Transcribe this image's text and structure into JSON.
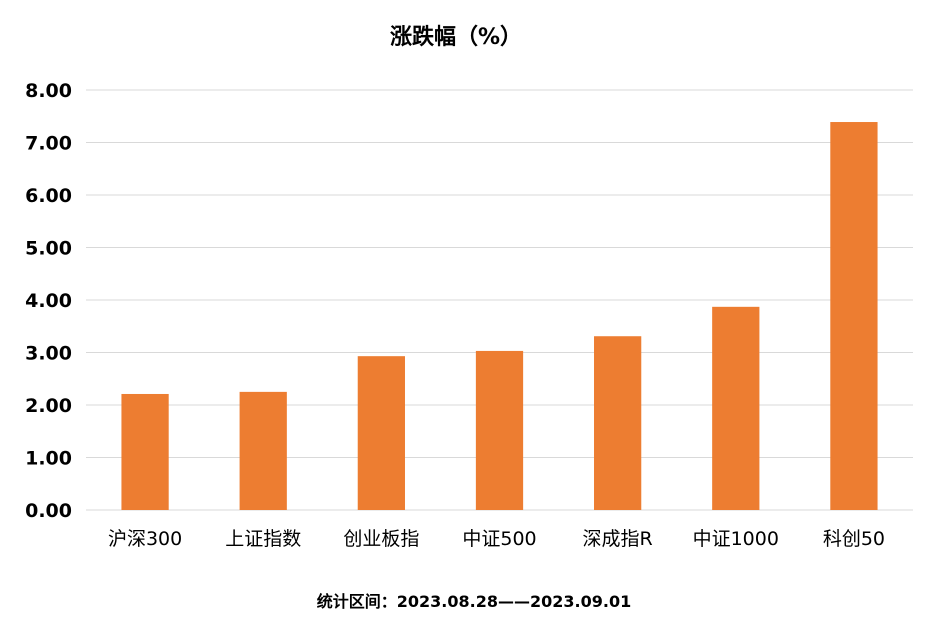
{
  "chart_data": {
    "type": "bar",
    "title": "涨跌幅（%）",
    "xlabel": "",
    "ylabel": "",
    "categories": [
      "沪深300",
      "上证指数",
      "创业板指",
      "中证500",
      "深成指R",
      "中证1000",
      "科创50"
    ],
    "values": [
      2.21,
      2.25,
      2.93,
      3.03,
      3.31,
      3.87,
      7.39
    ],
    "ylim": [
      0,
      8
    ],
    "yticks": [
      "0.00",
      "1.00",
      "2.00",
      "3.00",
      "4.00",
      "5.00",
      "6.00",
      "7.00",
      "8.00"
    ],
    "grid": true,
    "legend": "none",
    "bar_color": "#ED7D31"
  },
  "footer": "统计区间：2023.08.28——2023.09.01"
}
